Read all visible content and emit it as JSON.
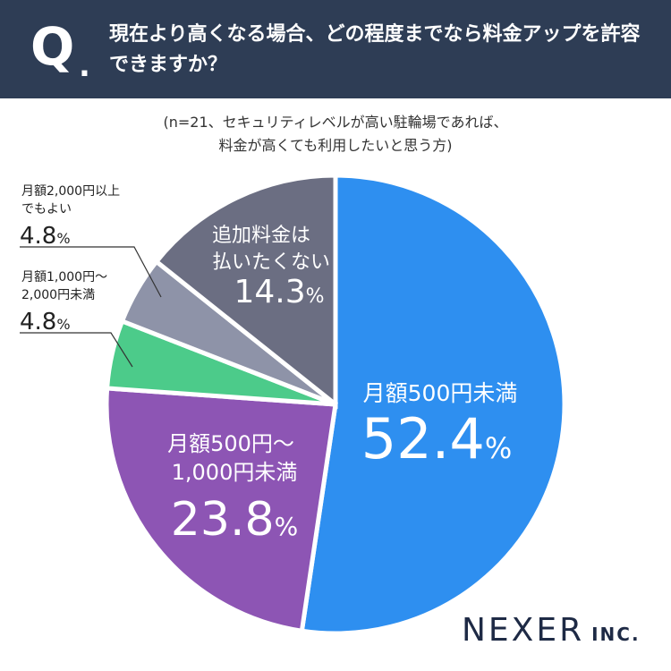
{
  "header": {
    "q_mark": "Q",
    "q_dot": ".",
    "question": "現在より高くなる場合、どの程度までなら料金アップを許容できますか？"
  },
  "note": {
    "line1": "(n=21、セキュリティレベルが高い駐輪場であれば、",
    "line2": "料金が高くても利用したいと思う方)"
  },
  "chart_data": {
    "type": "pie",
    "title": "",
    "unit": "%",
    "slices": [
      {
        "label": "月額500円未満",
        "value": 52.4,
        "value_text": "52.4",
        "color": "#2e8ff0"
      },
      {
        "label": "月額500円～1,000円未満",
        "value": 23.8,
        "value_text": "23.8",
        "color": "#8d55b4"
      },
      {
        "label": "月額1,000円～2,000円未満",
        "value": 4.8,
        "value_text": "4.8",
        "color": "#4ccb8a"
      },
      {
        "label": "月額2,000円以上でもよい",
        "value": 4.8,
        "value_text": "4.8",
        "color": "#8e93a8"
      },
      {
        "label": "追加料金は払いたくない",
        "value": 14.3,
        "value_text": "14.3",
        "color": "#6b6e82"
      }
    ]
  },
  "labels": {
    "s0": {
      "line1": "月額500円未満"
    },
    "s1": {
      "line1": "月額500円～",
      "line2": "1,000円未満"
    },
    "s2": {
      "line1": "月額1,000円～",
      "line2": "2,000円未満"
    },
    "s3": {
      "line1": "月額2,000円以上",
      "line2": "でもよい"
    },
    "s4": {
      "line1": "追加料金は",
      "line2": "払いたくない"
    }
  },
  "logo": {
    "main": "NEXER",
    "sub": "INC."
  }
}
